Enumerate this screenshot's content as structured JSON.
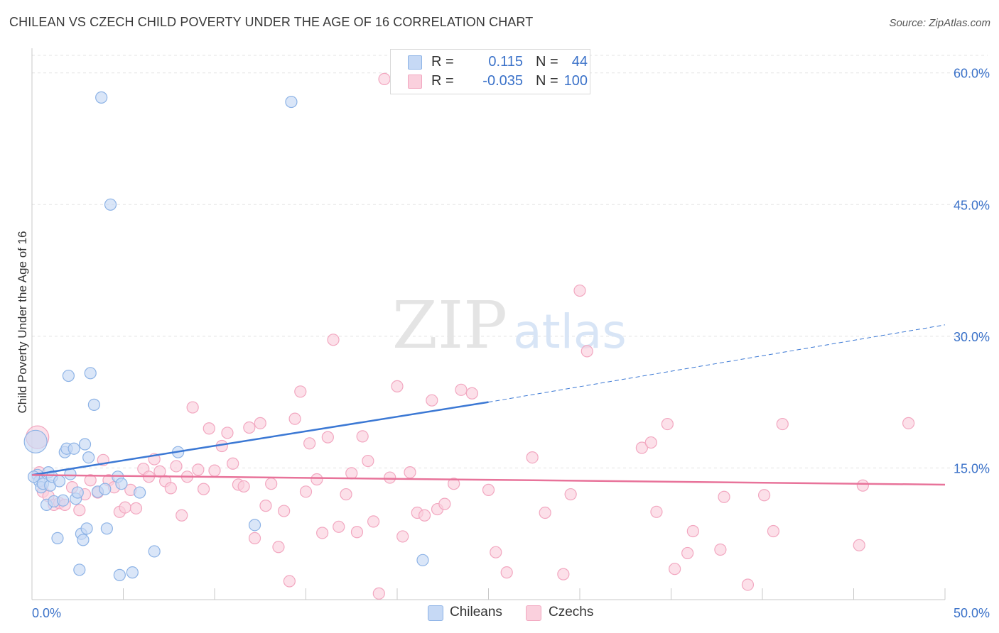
{
  "header": {
    "title": "CHILEAN VS CZECH CHILD POVERTY UNDER THE AGE OF 16 CORRELATION CHART",
    "source": "Source: ZipAtlas.com"
  },
  "watermark": {
    "zip": "ZIP",
    "atlas": "atlas"
  },
  "legend": {
    "r_label": "R =",
    "n_label": "N =",
    "rows": [
      {
        "r": "0.115",
        "n": "44"
      },
      {
        "r": "-0.035",
        "n": "100"
      }
    ]
  },
  "bottom_legend": {
    "chileans": "Chileans",
    "czechs": "Czechs"
  },
  "colors": {
    "chileans_fill": "#c6d9f5",
    "chileans_stroke": "#8db3e6",
    "chileans_line": "#3b78d4",
    "czechs_fill": "#fad0dd",
    "czechs_stroke": "#f2a7c0",
    "czechs_line": "#e8739a",
    "axis_text": "#3b72c9"
  },
  "chart_data": {
    "type": "scatter",
    "title": "CHILEAN VS CZECH CHILD POVERTY UNDER THE AGE OF 16 CORRELATION CHART",
    "xlabel": "",
    "ylabel": "Child Poverty Under the Age of 16",
    "xlim": [
      0,
      50
    ],
    "ylim": [
      0,
      60
    ],
    "x_tick_labels": [
      "0.0%",
      "50.0%"
    ],
    "y_tick_labels": [
      "15.0%",
      "30.0%",
      "45.0%",
      "60.0%"
    ],
    "y_ticks": [
      15,
      30,
      45,
      60
    ],
    "grid": true,
    "legend_position": "top-center",
    "series": [
      {
        "name": "Chileans",
        "R": 0.115,
        "N": 44,
        "trend": {
          "x0": 0,
          "y0": 14.2,
          "x1": 25,
          "y1": 22.5,
          "dashed_to_x": 50,
          "dashed_to_y": 31.3
        },
        "points": [
          [
            0.2,
            18.0
          ],
          [
            0.3,
            14.2
          ],
          [
            0.4,
            13.5
          ],
          [
            0.5,
            12.8
          ],
          [
            0.6,
            13.2
          ],
          [
            0.8,
            10.8
          ],
          [
            0.9,
            14.5
          ],
          [
            1.0,
            13.0
          ],
          [
            1.1,
            14.0
          ],
          [
            1.2,
            11.2
          ],
          [
            1.4,
            7.0
          ],
          [
            1.5,
            13.5
          ],
          [
            1.7,
            11.3
          ],
          [
            1.8,
            16.8
          ],
          [
            1.9,
            17.2
          ],
          [
            2.0,
            25.5
          ],
          [
            2.1,
            14.3
          ],
          [
            2.3,
            17.2
          ],
          [
            2.4,
            11.5
          ],
          [
            2.5,
            12.2
          ],
          [
            2.6,
            3.4
          ],
          [
            2.7,
            7.5
          ],
          [
            2.8,
            6.8
          ],
          [
            2.9,
            17.7
          ],
          [
            3.0,
            8.1
          ],
          [
            3.1,
            16.2
          ],
          [
            3.2,
            25.8
          ],
          [
            3.4,
            22.2
          ],
          [
            3.6,
            12.3
          ],
          [
            3.8,
            57.2
          ],
          [
            4.0,
            12.6
          ],
          [
            4.1,
            8.1
          ],
          [
            4.3,
            45.0
          ],
          [
            4.7,
            14.0
          ],
          [
            4.8,
            2.8
          ],
          [
            4.9,
            13.2
          ],
          [
            5.5,
            3.1
          ],
          [
            5.9,
            12.2
          ],
          [
            6.7,
            5.5
          ],
          [
            8.0,
            16.8
          ],
          [
            12.2,
            8.5
          ],
          [
            14.2,
            56.7
          ],
          [
            21.4,
            4.5
          ],
          [
            0.1,
            14.0
          ]
        ]
      },
      {
        "name": "Czechs",
        "R": -0.035,
        "N": 100,
        "trend": {
          "x0": 0,
          "y0": 14.2,
          "x1": 50,
          "y1": 13.1
        },
        "points": [
          [
            0.3,
            18.5
          ],
          [
            0.4,
            14.5
          ],
          [
            0.6,
            12.3
          ],
          [
            0.9,
            11.8
          ],
          [
            1.2,
            10.8
          ],
          [
            1.5,
            11.0
          ],
          [
            1.8,
            10.8
          ],
          [
            2.2,
            12.8
          ],
          [
            2.6,
            10.2
          ],
          [
            2.9,
            12.0
          ],
          [
            3.2,
            13.6
          ],
          [
            3.6,
            12.2
          ],
          [
            3.9,
            15.9
          ],
          [
            4.2,
            13.6
          ],
          [
            4.5,
            12.8
          ],
          [
            4.8,
            10.0
          ],
          [
            5.1,
            10.5
          ],
          [
            5.4,
            12.5
          ],
          [
            5.7,
            10.4
          ],
          [
            6.1,
            14.9
          ],
          [
            6.4,
            14.0
          ],
          [
            6.7,
            16.0
          ],
          [
            7.0,
            14.6
          ],
          [
            7.3,
            13.5
          ],
          [
            7.6,
            12.7
          ],
          [
            7.9,
            15.2
          ],
          [
            8.2,
            9.6
          ],
          [
            8.5,
            14.0
          ],
          [
            8.8,
            21.9
          ],
          [
            9.1,
            14.8
          ],
          [
            9.4,
            12.6
          ],
          [
            9.7,
            19.5
          ],
          [
            10.0,
            14.7
          ],
          [
            10.4,
            17.5
          ],
          [
            10.7,
            19.0
          ],
          [
            11.0,
            15.5
          ],
          [
            11.3,
            13.1
          ],
          [
            11.6,
            12.9
          ],
          [
            11.9,
            19.6
          ],
          [
            12.2,
            7.0
          ],
          [
            12.5,
            20.1
          ],
          [
            12.8,
            10.7
          ],
          [
            13.1,
            13.2
          ],
          [
            13.5,
            6.0
          ],
          [
            13.8,
            10.1
          ],
          [
            14.1,
            2.1
          ],
          [
            14.4,
            20.6
          ],
          [
            14.7,
            23.7
          ],
          [
            15.0,
            12.3
          ],
          [
            15.2,
            17.8
          ],
          [
            15.6,
            13.7
          ],
          [
            15.9,
            7.6
          ],
          [
            16.2,
            18.5
          ],
          [
            16.5,
            29.6
          ],
          [
            16.8,
            8.3
          ],
          [
            17.2,
            12.0
          ],
          [
            17.5,
            14.4
          ],
          [
            17.8,
            7.7
          ],
          [
            18.1,
            18.6
          ],
          [
            18.4,
            15.8
          ],
          [
            18.7,
            8.9
          ],
          [
            19.0,
            0.7
          ],
          [
            19.3,
            59.3
          ],
          [
            19.6,
            13.9
          ],
          [
            20.0,
            24.3
          ],
          [
            20.3,
            7.2
          ],
          [
            20.7,
            14.5
          ],
          [
            21.1,
            9.9
          ],
          [
            21.5,
            9.6
          ],
          [
            21.9,
            22.7
          ],
          [
            22.2,
            10.3
          ],
          [
            22.6,
            10.9
          ],
          [
            23.1,
            13.2
          ],
          [
            23.5,
            23.9
          ],
          [
            24.1,
            23.5
          ],
          [
            25.0,
            12.5
          ],
          [
            25.4,
            5.4
          ],
          [
            26.0,
            3.1
          ],
          [
            27.4,
            16.2
          ],
          [
            28.1,
            9.9
          ],
          [
            29.1,
            2.9
          ],
          [
            29.5,
            12.0
          ],
          [
            30.0,
            35.2
          ],
          [
            30.4,
            28.3
          ],
          [
            33.4,
            17.3
          ],
          [
            33.9,
            17.9
          ],
          [
            34.2,
            10.0
          ],
          [
            34.8,
            20.0
          ],
          [
            35.2,
            3.5
          ],
          [
            35.9,
            5.3
          ],
          [
            36.2,
            7.8
          ],
          [
            37.7,
            5.7
          ],
          [
            37.9,
            11.7
          ],
          [
            39.2,
            1.7
          ],
          [
            40.1,
            11.9
          ],
          [
            40.6,
            7.8
          ],
          [
            41.1,
            20.0
          ],
          [
            45.3,
            6.2
          ],
          [
            45.5,
            13.0
          ],
          [
            48.0,
            20.1
          ]
        ]
      }
    ]
  }
}
